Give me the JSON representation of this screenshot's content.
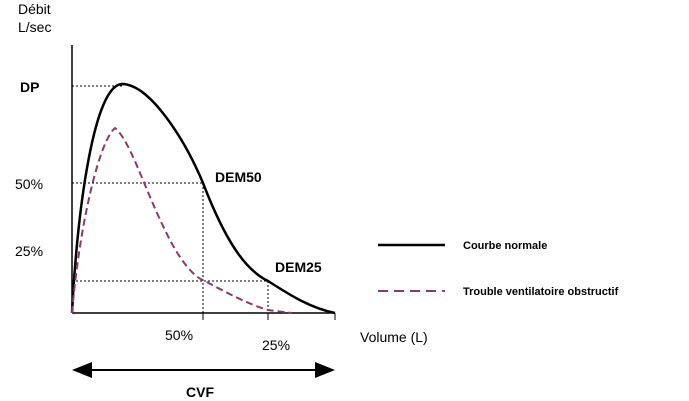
{
  "axes": {
    "y_label": [
      "Débit",
      "L/sec"
    ],
    "x_label": "Volume (L)"
  },
  "y_markers": [
    "DP",
    "50%",
    "25%"
  ],
  "x_markers": [
    "50%",
    "25%"
  ],
  "points": [
    "DEM50",
    "DEM25"
  ],
  "span_label": "CVF",
  "legend": [
    "Courbe normale",
    "Trouble ventilatoire obstructif"
  ]
}
